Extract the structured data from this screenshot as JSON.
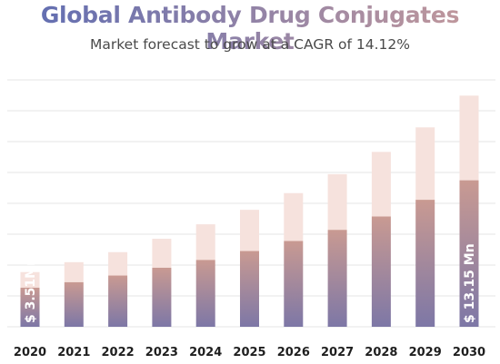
{
  "title": {
    "line1": "Global Antibody Drug Conjugates Market"
  },
  "subtitle": "Market forecast to grow at a CAGR of 14.12%",
  "colors": {
    "title_start": "#5b6bb3",
    "title_end": "#c79a9a",
    "bar_top": "#f6e2dd",
    "bar_grad_top": "#c99a92",
    "bar_grad_bottom": "#7d77a6",
    "grid": "#e6e6e6"
  },
  "chart_data": {
    "type": "bar",
    "stacked": true,
    "categories": [
      "2020",
      "2021",
      "2022",
      "2023",
      "2024",
      "2025",
      "2026",
      "2027",
      "2028",
      "2029",
      "2030"
    ],
    "series": [
      {
        "values": [
          3.51,
          4.0,
          4.6,
          5.3,
          6.0,
          6.8,
          7.7,
          8.7,
          9.9,
          11.4,
          13.15
        ]
      },
      {
        "values": [
          1.4,
          1.8,
          2.1,
          2.6,
          3.2,
          3.7,
          4.3,
          5.0,
          5.8,
          6.5,
          7.6
        ]
      }
    ],
    "data_labels": {
      "first": "$ 3.51Mn",
      "last": "$ 13.15 Mn"
    },
    "ylim": [
      0,
      22
    ],
    "grid": true
  }
}
